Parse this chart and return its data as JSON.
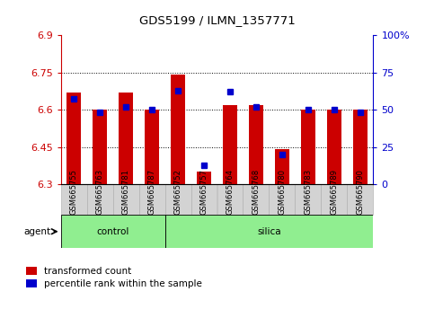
{
  "title": "GDS5199 / ILMN_1357771",
  "samples": [
    "GSM665755",
    "GSM665763",
    "GSM665781",
    "GSM665787",
    "GSM665752",
    "GSM665757",
    "GSM665764",
    "GSM665768",
    "GSM665780",
    "GSM665783",
    "GSM665789",
    "GSM665790"
  ],
  "groups": [
    "control",
    "control",
    "control",
    "control",
    "silica",
    "silica",
    "silica",
    "silica",
    "silica",
    "silica",
    "silica",
    "silica"
  ],
  "transformed_count": [
    6.67,
    6.6,
    6.67,
    6.6,
    6.74,
    6.35,
    6.62,
    6.62,
    6.44,
    6.6,
    6.6,
    6.6
  ],
  "percentile_rank": [
    57,
    48,
    52,
    50,
    63,
    13,
    62,
    52,
    20,
    50,
    50,
    48
  ],
  "ymin": 6.3,
  "ymax": 6.9,
  "yticks": [
    6.3,
    6.45,
    6.6,
    6.75,
    6.9
  ],
  "right_yticks": [
    0,
    25,
    50,
    75,
    100
  ],
  "bar_color": "#CC0000",
  "percentile_color": "#0000CC",
  "group_color": "#90EE90",
  "sample_box_color": "#d3d3d3",
  "background_color": "#ffffff",
  "agent_label": "agent",
  "legend_red": "transformed count",
  "legend_blue": "percentile rank within the sample"
}
